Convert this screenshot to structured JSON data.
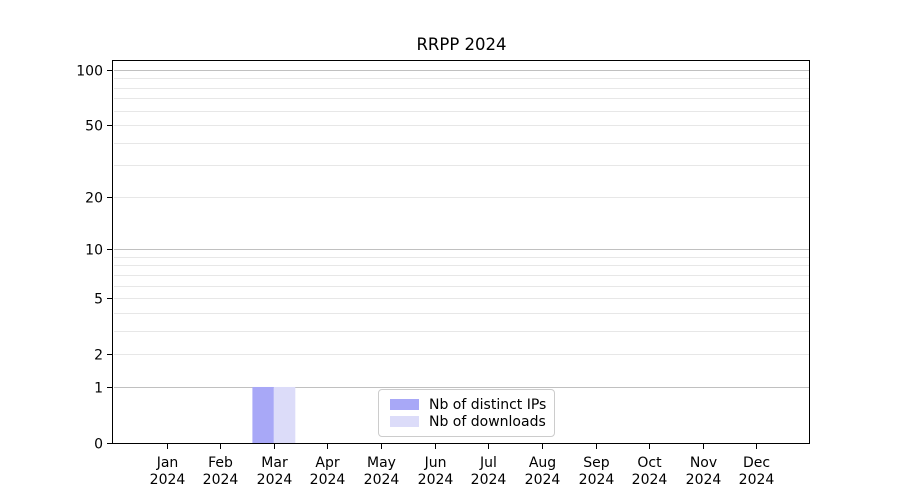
{
  "chart_data": {
    "type": "bar",
    "title": "RRPP 2024",
    "categories": [
      "Jan",
      "Feb",
      "Mar",
      "Apr",
      "May",
      "Jun",
      "Jul",
      "Aug",
      "Sep",
      "Oct",
      "Nov",
      "Dec"
    ],
    "category_year": "2024",
    "series": [
      {
        "name": "Nb of distinct IPs",
        "color": "#a8a8f7",
        "values": [
          0,
          0,
          1,
          0,
          0,
          0,
          0,
          0,
          0,
          0,
          0,
          0
        ]
      },
      {
        "name": "Nb of downloads",
        "color": "#dcdcf9",
        "values": [
          0,
          0,
          1,
          0,
          0,
          0,
          0,
          0,
          0,
          0,
          0,
          0
        ]
      }
    ],
    "xlabel": "",
    "ylabel": "",
    "y_axis": {
      "scale": "log1p",
      "tick_labels": [
        0,
        1,
        2,
        5,
        10,
        20,
        50,
        100
      ],
      "major_gridlines": [
        1,
        10,
        100
      ],
      "minor_gridlines": [
        2,
        3,
        4,
        5,
        6,
        7,
        8,
        9,
        20,
        30,
        40,
        50,
        60,
        70,
        80,
        90
      ],
      "range": [
        0,
        112
      ]
    },
    "x_tick_marks": true,
    "grid": "horizontal",
    "legend_position": "lower-center"
  },
  "colors": {
    "background": "#ffffff",
    "axis": "#000000",
    "text": "#000000",
    "major_grid": "#c0c0c0",
    "minor_grid": "#e7e7e7",
    "legend_border": "#cccccc",
    "bar_distinct_ips": "#a8a8f7",
    "bar_downloads": "#dcdcf9"
  }
}
